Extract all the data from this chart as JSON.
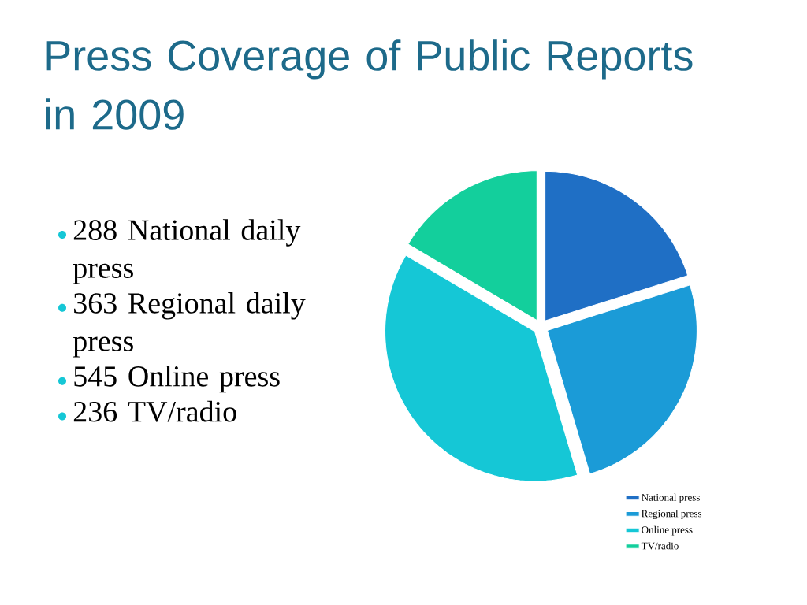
{
  "chart_data": {
    "type": "pie",
    "title": "Press Coverage of Public Reports in 2009",
    "categories": [
      "National press",
      "Regional press",
      "Online press",
      "TV/radio"
    ],
    "values": [
      20.1,
      25.3,
      38.1,
      16.5
    ],
    "colors": [
      "#1f6fc5",
      "#1b9bd7",
      "#15c7d6",
      "#13cf9c"
    ],
    "legend": "bottom right",
    "annotations": [
      "288 National daily press",
      "363 Regional daily press",
      "545 Online press",
      "236 TV/radio"
    ]
  }
}
